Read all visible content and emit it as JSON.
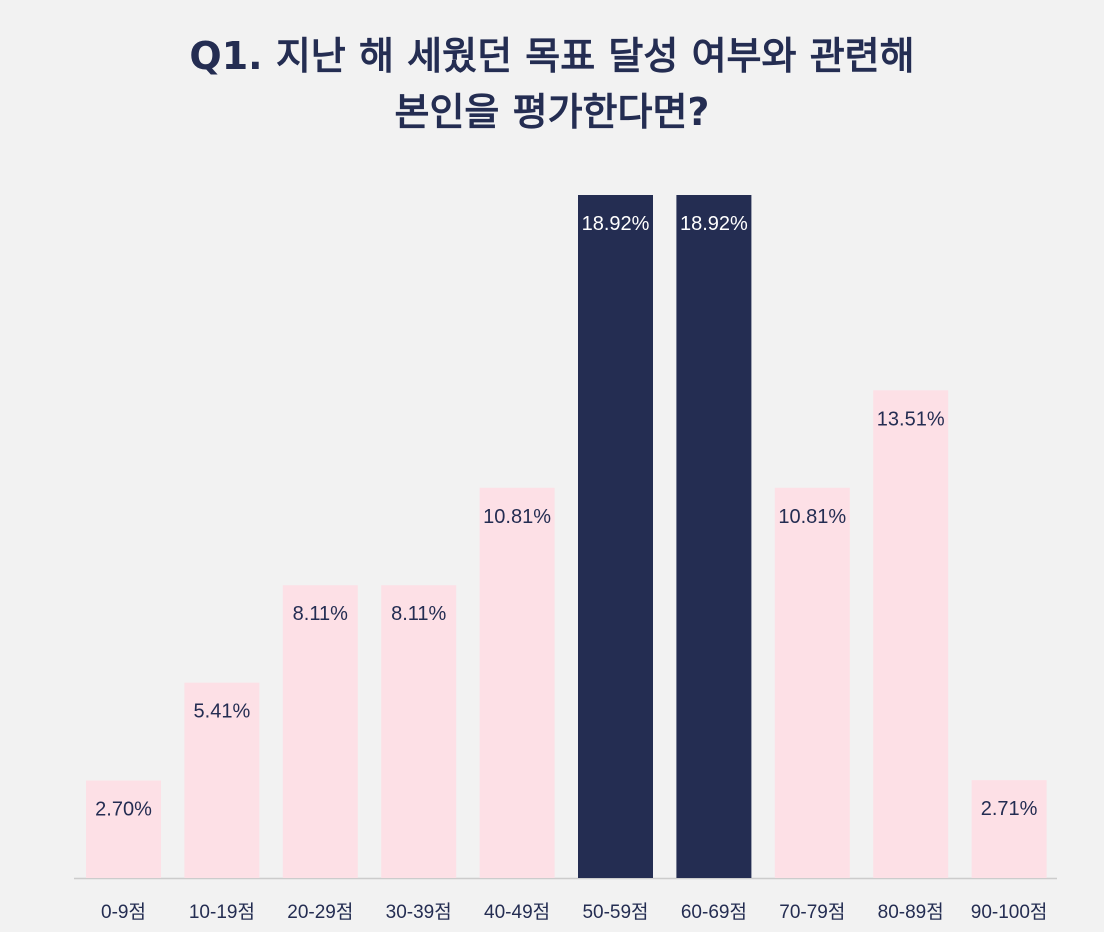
{
  "colors": {
    "background": "#f2f2f2",
    "bar_default": "#fde0e6",
    "bar_highlight": "#242d52",
    "text_dark": "#242d52",
    "text_light": "#ffffff",
    "axis": "#cccccc"
  },
  "chart_data": {
    "type": "bar",
    "title_lines": [
      "Q1. 지난 해 세웠던 목표 달성 여부와 관련해",
      "본인을 평가한다면?"
    ],
    "categories": [
      "0-9점",
      "10-19점",
      "20-29점",
      "30-39점",
      "40-49점",
      "50-59점",
      "60-69점",
      "70-79점",
      "80-89점",
      "90-100점"
    ],
    "values": [
      2.7,
      5.41,
      8.11,
      8.11,
      10.81,
      18.92,
      18.92,
      10.81,
      13.51,
      2.71
    ],
    "value_labels": [
      "2.70%",
      "5.41%",
      "8.11%",
      "8.11%",
      "10.81%",
      "18.92%",
      "18.92%",
      "10.81%",
      "13.51%",
      "2.71%"
    ],
    "highlighted_categories": [
      "50-59점",
      "60-69점"
    ],
    "ylim": [
      0,
      18.92
    ],
    "grid": false,
    "legend": "none",
    "xlabel": "",
    "ylabel": ""
  }
}
